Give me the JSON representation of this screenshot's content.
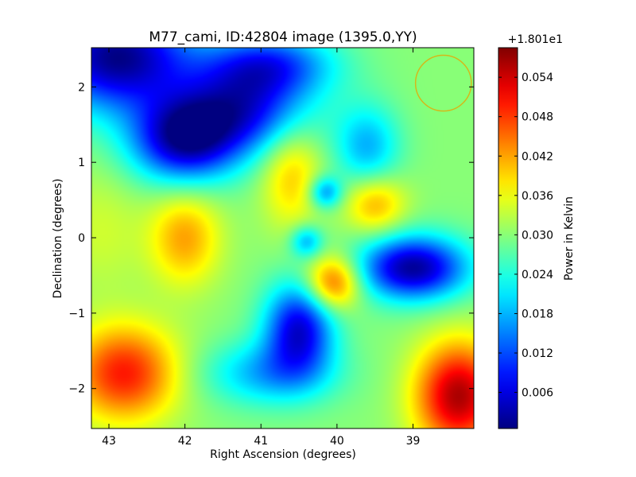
{
  "chart_data": {
    "type": "heatmap",
    "title": "M77_cami, ID:42804 image (1395.0,YY)",
    "xlabel": "Right Ascension (degrees)",
    "ylabel": "Declination (degrees)",
    "xlim": [
      43.23,
      38.2
    ],
    "ylim": [
      -2.53,
      2.52
    ],
    "x_ticks": [
      {
        "value": 43,
        "label": "43"
      },
      {
        "value": 42,
        "label": "42"
      },
      {
        "value": 41,
        "label": "41"
      },
      {
        "value": 40,
        "label": "40"
      },
      {
        "value": 39,
        "label": "39"
      }
    ],
    "y_ticks": [
      {
        "value": 2,
        "label": "2"
      },
      {
        "value": 1,
        "label": "1"
      },
      {
        "value": 0,
        "label": "0"
      },
      {
        "value": -1,
        "label": "−1"
      },
      {
        "value": -2,
        "label": "−2"
      }
    ],
    "colorbar": {
      "label": "Power in Kelvin",
      "offset_text": "+1.801e1",
      "colormap": "jet",
      "range": [
        0.0005,
        0.0585
      ],
      "ticks": [
        {
          "value": 0.006,
          "label": "0.006"
        },
        {
          "value": 0.012,
          "label": "0.012"
        },
        {
          "value": 0.018,
          "label": "0.018"
        },
        {
          "value": 0.024,
          "label": "0.024"
        },
        {
          "value": 0.03,
          "label": "0.030"
        },
        {
          "value": 0.036,
          "label": "0.036"
        },
        {
          "value": 0.042,
          "label": "0.042"
        },
        {
          "value": 0.048,
          "label": "0.048"
        },
        {
          "value": 0.054,
          "label": "0.054"
        }
      ]
    },
    "beam_marker": {
      "ra": 38.6,
      "dec": 2.05,
      "radius_deg": 0.37,
      "color": "#d4b81a"
    },
    "background_value": 0.03,
    "features": [
      {
        "ra": 42.9,
        "dec": 2.4,
        "value": 0.001,
        "sx": 0.7,
        "sy": 0.5
      },
      {
        "ra": 42.0,
        "dec": 1.3,
        "value": 0.003,
        "sx": 0.5,
        "sy": 0.4
      },
      {
        "ra": 41.2,
        "dec": 1.7,
        "value": 0.01,
        "sx": 0.6,
        "sy": 0.4
      },
      {
        "ra": 40.9,
        "dec": 2.3,
        "value": 0.012,
        "sx": 0.6,
        "sy": 0.3
      },
      {
        "ra": 40.6,
        "dec": 0.85,
        "value": 0.04,
        "sx": 0.28,
        "sy": 0.5
      },
      {
        "ra": 39.5,
        "dec": 0.45,
        "value": 0.042,
        "sx": 0.28,
        "sy": 0.28
      },
      {
        "ra": 40.15,
        "dec": 0.6,
        "value": 0.016,
        "sx": 0.15,
        "sy": 0.15
      },
      {
        "ra": 42.0,
        "dec": 0.0,
        "value": 0.042,
        "sx": 0.33,
        "sy": 0.45
      },
      {
        "ra": 40.05,
        "dec": -0.6,
        "value": 0.048,
        "sx": 0.25,
        "sy": 0.25
      },
      {
        "ra": 40.4,
        "dec": -0.05,
        "value": 0.018,
        "sx": 0.15,
        "sy": 0.15
      },
      {
        "ra": 39.0,
        "dec": -0.4,
        "value": 0.002,
        "sx": 0.5,
        "sy": 0.3
      },
      {
        "ra": 40.5,
        "dec": -1.2,
        "value": 0.006,
        "sx": 0.32,
        "sy": 0.42
      },
      {
        "ra": 40.9,
        "dec": -1.8,
        "value": 0.018,
        "sx": 0.6,
        "sy": 0.3
      },
      {
        "ra": 42.8,
        "dec": -1.8,
        "value": 0.05,
        "sx": 0.5,
        "sy": 0.45
      },
      {
        "ra": 38.4,
        "dec": -2.1,
        "value": 0.056,
        "sx": 0.4,
        "sy": 0.5
      },
      {
        "ra": 39.6,
        "dec": 1.2,
        "value": 0.018,
        "sx": 0.3,
        "sy": 0.4
      },
      {
        "ra": 43.1,
        "dec": 0.1,
        "value": 0.034,
        "sx": 0.4,
        "sy": 0.6
      }
    ]
  }
}
